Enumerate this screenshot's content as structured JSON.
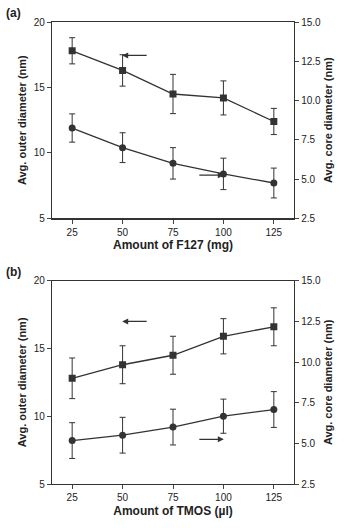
{
  "chart_data": [
    {
      "type": "line",
      "label": "(a)",
      "xlabel": "Amount of F127 (mg)",
      "ylabel": "Avg. outer diameter (nm)",
      "y2label": "Avg. core diameter (nm)",
      "x": [
        25,
        50,
        75,
        100,
        125
      ],
      "xlim": [
        15,
        135
      ],
      "xticks": [
        25,
        50,
        75,
        100,
        125
      ],
      "ylim": [
        5,
        20
      ],
      "yticks": [
        5,
        10,
        15,
        20
      ],
      "y2lim": [
        2.5,
        15
      ],
      "y2ticks": [
        2.5,
        {
          "value": 5,
          "label": "5.0"
        },
        7.5,
        {
          "value": 10,
          "label": "10.0"
        },
        12.5,
        {
          "value": 15,
          "label": "15.0"
        }
      ],
      "series": [
        {
          "values": [
            17.8,
            16.3,
            14.5,
            14.2,
            12.4
          ],
          "errors": [
            1.0,
            1.2,
            1.5,
            1.3,
            1.0
          ],
          "marker": "square",
          "color": "#333333"
        },
        {
          "values": [
            8.25,
            7.0,
            6.0,
            5.33,
            4.75
          ],
          "errors": [
            0.9,
            0.95,
            1.0,
            1.0,
            0.95
          ],
          "marker": "circle",
          "color": "#333333",
          "axis": "y2"
        }
      ]
    },
    {
      "type": "line",
      "label": "(b)",
      "xlabel": "Amount of TMOS (µl)",
      "ylabel": "Avg. outer diameter (nm)",
      "y2label": "Avg. core diameter (nm)",
      "x": [
        25,
        50,
        75,
        100,
        125
      ],
      "xlim": [
        15,
        135
      ],
      "xticks": [
        25,
        50,
        75,
        100,
        125
      ],
      "ylim": [
        5,
        20
      ],
      "yticks": [
        5,
        10,
        15,
        20
      ],
      "y2lim": [
        2.5,
        15
      ],
      "y2ticks": [
        2.5,
        {
          "value": 5,
          "label": "5.0"
        },
        7.5,
        {
          "value": 10,
          "label": "10.0"
        },
        12.5,
        {
          "value": 15,
          "label": "15.0"
        }
      ],
      "series": [
        {
          "values": [
            12.8,
            13.8,
            14.5,
            15.9,
            16.6
          ],
          "errors": [
            1.5,
            1.4,
            1.4,
            1.3,
            1.4
          ],
          "marker": "square",
          "color": "#333333"
        },
        {
          "values": [
            5.17,
            5.5,
            6.0,
            6.67,
            7.08
          ],
          "errors": [
            1.1,
            1.1,
            1.1,
            1.05,
            1.1
          ],
          "marker": "circle",
          "color": "#333333",
          "axis": "y2"
        }
      ]
    }
  ]
}
